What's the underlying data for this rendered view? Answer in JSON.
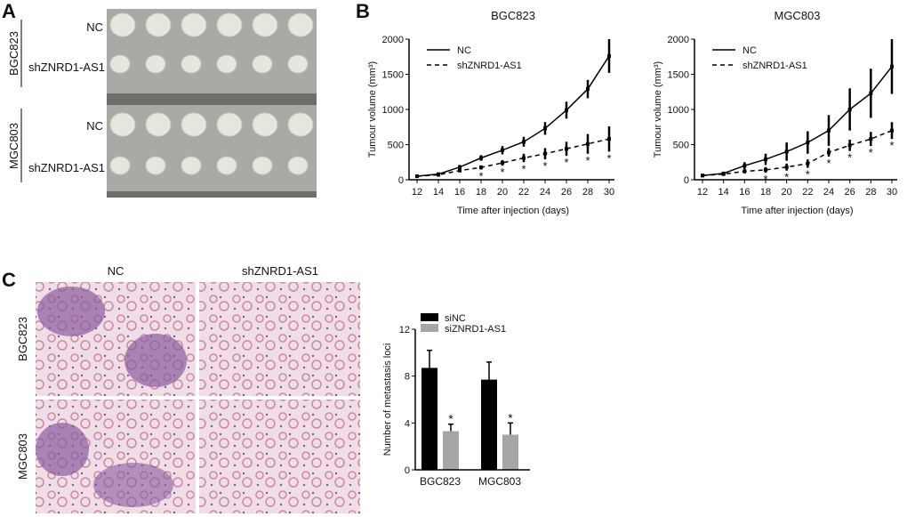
{
  "panels": {
    "a": {
      "letter": "A",
      "groups": [
        "BGC823",
        "MGC803"
      ],
      "rows": [
        "NC",
        "shZNRD1-AS1",
        "NC",
        "shZNRD1-AS1"
      ]
    },
    "b": {
      "letter": "B"
    },
    "c": {
      "letter": "C",
      "columns": [
        "NC",
        "shZNRD1-AS1"
      ],
      "rows": [
        "BGC823",
        "MGC803"
      ]
    }
  },
  "chart_data": [
    {
      "type": "line",
      "title": "BGC823",
      "xlabel": "Time after injection (days)",
      "ylabel": "Tumour volume (mm³)",
      "xlim": [
        12,
        30
      ],
      "ylim": [
        0,
        2000
      ],
      "xticks": [
        12,
        14,
        16,
        18,
        20,
        22,
        24,
        26,
        28,
        30
      ],
      "yticks": [
        0,
        500,
        1000,
        1500,
        2000
      ],
      "legend": "top-left",
      "x": [
        12,
        14,
        16,
        18,
        20,
        22,
        24,
        26,
        28,
        30
      ],
      "series": [
        {
          "name": "NC",
          "style": "solid",
          "values": [
            50,
            80,
            180,
            310,
            420,
            540,
            730,
            990,
            1290,
            1760
          ],
          "error": [
            15,
            20,
            30,
            40,
            60,
            70,
            90,
            120,
            130,
            240
          ]
        },
        {
          "name": "shZNRD1-AS1",
          "style": "dashed",
          "values": [
            50,
            70,
            130,
            175,
            240,
            310,
            370,
            440,
            510,
            580
          ],
          "error": [
            10,
            10,
            20,
            30,
            40,
            60,
            80,
            100,
            140,
            180
          ]
        }
      ],
      "significance": {
        "marker": "*",
        "x": [
          18,
          20,
          22,
          24,
          26,
          28,
          30
        ]
      }
    },
    {
      "type": "line",
      "title": "MGC803",
      "xlabel": "Time after injection (days)",
      "ylabel": "Tumour volume (mm³)",
      "xlim": [
        12,
        30
      ],
      "ylim": [
        0,
        2000
      ],
      "xticks": [
        12,
        14,
        16,
        18,
        20,
        22,
        24,
        26,
        28,
        30
      ],
      "yticks": [
        0,
        500,
        1000,
        1500,
        2000
      ],
      "legend": "top-left",
      "x": [
        12,
        14,
        16,
        18,
        20,
        22,
        24,
        26,
        28,
        30
      ],
      "series": [
        {
          "name": "NC",
          "style": "solid",
          "values": [
            60,
            90,
            200,
            290,
            400,
            530,
            700,
            1000,
            1230,
            1610
          ],
          "error": [
            15,
            20,
            50,
            80,
            130,
            160,
            220,
            300,
            350,
            390
          ]
        },
        {
          "name": "shZNRD1-AS1",
          "style": "dashed",
          "values": [
            60,
            80,
            120,
            140,
            180,
            230,
            390,
            490,
            580,
            700
          ],
          "error": [
            10,
            20,
            30,
            40,
            50,
            60,
            60,
            80,
            100,
            120
          ]
        }
      ],
      "significance": {
        "marker": "*",
        "x": [
          18,
          20,
          22,
          24,
          26,
          28,
          30
        ]
      }
    },
    {
      "type": "bar",
      "categories": [
        "BGC823",
        "MGC803"
      ],
      "ylabel": "Number of metastasis loci",
      "ylim": [
        0,
        12
      ],
      "yticks": [
        0,
        4,
        8,
        12
      ],
      "legend": "top-left",
      "series": [
        {
          "name": "siNC",
          "color": "#000000",
          "values": [
            8.7,
            7.7
          ],
          "error": [
            1.5,
            1.5
          ]
        },
        {
          "name": "siZNRD1-AS1",
          "color": "#a6a6a6",
          "values": [
            3.3,
            3.0
          ],
          "error": [
            0.6,
            1.0
          ]
        }
      ],
      "significance": {
        "marker": "*",
        "series": "siZNRD1-AS1"
      }
    }
  ]
}
